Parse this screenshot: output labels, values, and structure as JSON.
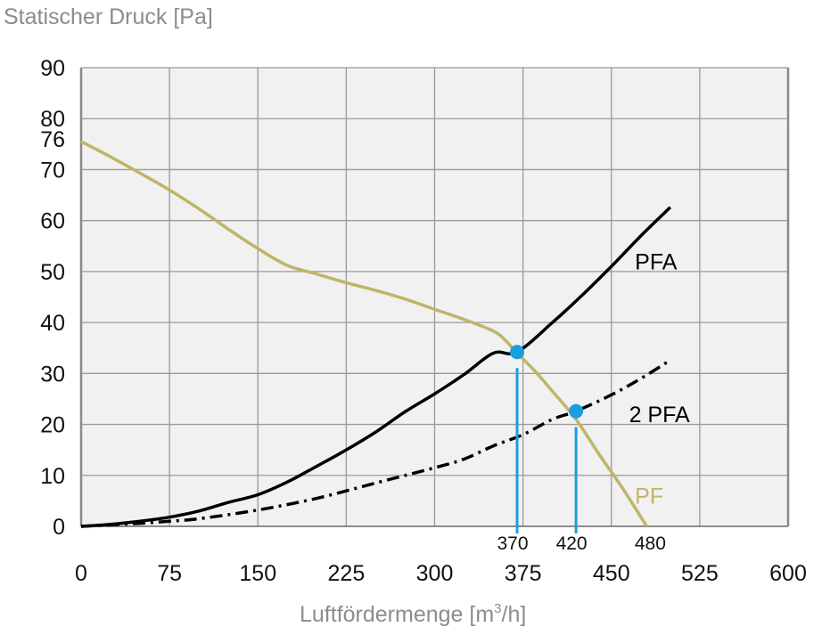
{
  "chart_data": {
    "type": "line",
    "title": "",
    "ylabel": "Statischer Druck [Pa]",
    "xlabel": "Luftfördermenge [m³/h]",
    "xlabel_parts": {
      "main": "Luftfördermenge [m",
      "sup": "3",
      "tail": "/h]"
    },
    "xlim": [
      0,
      600
    ],
    "ylim": [
      0,
      90
    ],
    "grid": true,
    "x_ticks": [
      0,
      75,
      150,
      225,
      300,
      375,
      450,
      525,
      600
    ],
    "y_ticks": [
      0,
      10,
      20,
      30,
      40,
      50,
      60,
      70,
      80,
      90
    ],
    "extra_y_tick": {
      "value": 76,
      "label": "76"
    },
    "series": [
      {
        "name": "PF",
        "label": "PF",
        "color": "#bfb567",
        "style": "solid",
        "x": [
          0,
          25,
          50,
          75,
          100,
          125,
          150,
          175,
          200,
          225,
          250,
          275,
          300,
          325,
          350,
          360,
          370,
          385,
          400,
          420,
          440,
          460,
          480
        ],
        "y": [
          75.5,
          72.5,
          69.3,
          66,
          62.3,
          58.3,
          54.5,
          51.2,
          49.5,
          47.8,
          46.3,
          44.6,
          42.6,
          40.6,
          38.3,
          36.5,
          34,
          30.5,
          26.5,
          21,
          14,
          7.3,
          0
        ]
      },
      {
        "name": "PFA",
        "label": "PFA",
        "color": "#000000",
        "style": "solid",
        "x": [
          0,
          25,
          50,
          75,
          100,
          125,
          150,
          175,
          200,
          225,
          250,
          275,
          300,
          325,
          350,
          370,
          400,
          425,
          450,
          475,
          500
        ],
        "y": [
          0,
          0.4,
          1,
          1.8,
          3,
          4.7,
          6.2,
          8.7,
          11.8,
          15,
          18.5,
          22.5,
          26,
          29.8,
          34,
          34.2,
          40,
          45.3,
          51,
          57,
          62.6
        ]
      },
      {
        "name": "2 PFA",
        "label": "2 PFA",
        "color": "#000000",
        "style": "dashdot",
        "x": [
          0,
          50,
          75,
          100,
          150,
          200,
          250,
          300,
          325,
          350,
          375,
          400,
          420,
          450,
          475,
          500
        ],
        "y": [
          0,
          0.6,
          1,
          1.5,
          3.2,
          5.5,
          8.5,
          11.5,
          13.2,
          15.8,
          18,
          21,
          22.6,
          25.8,
          29,
          32.6
        ]
      }
    ],
    "operating_points": [
      {
        "x": 370,
        "y": 34.2,
        "label": "370",
        "color": "#1a9ee0"
      },
      {
        "x": 420,
        "y": 22.6,
        "label": "420",
        "color": "#1a9ee0"
      }
    ],
    "annotations": [
      {
        "x": 480,
        "y": 0,
        "label": "480"
      }
    ],
    "series_label_positions": [
      {
        "name": "PFA",
        "x": 470,
        "y": 52
      },
      {
        "name": "2 PFA",
        "x": 465,
        "y": 22
      },
      {
        "name": "PF",
        "x": 470,
        "y": 6
      }
    ]
  },
  "colors": {
    "plot_background": "#f1f1f1",
    "grid": "#9a9a9a",
    "axis_title": "#8c8c8c",
    "marker": "#1a9ee0"
  }
}
